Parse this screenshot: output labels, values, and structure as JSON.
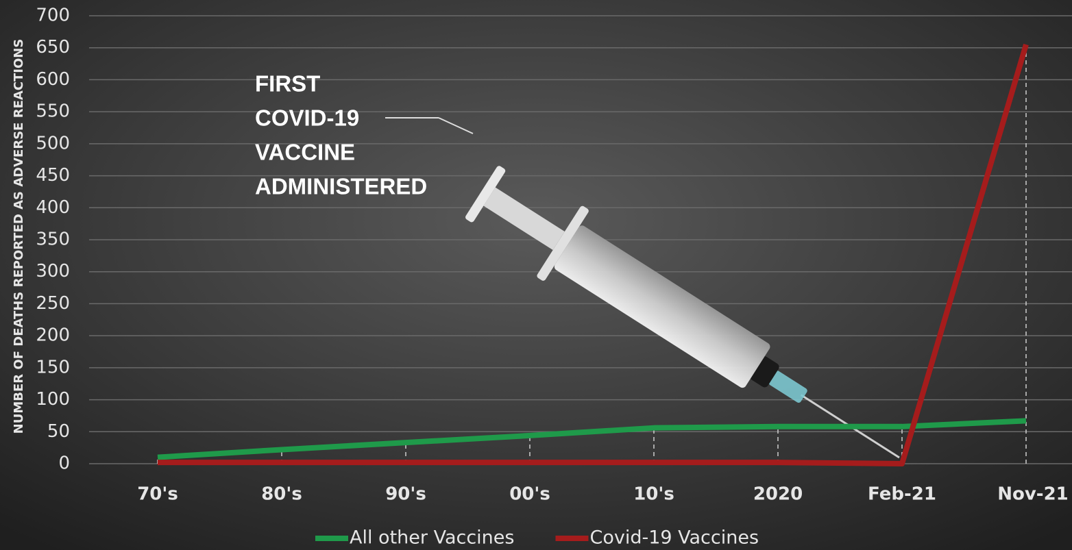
{
  "chart_data": {
    "type": "line",
    "y_label": "NUMBER OF DEATHS REPORTED AS ADVERSE REACTIONS",
    "annotation": [
      "FIRST",
      "COVID-19",
      "VACCINE",
      "ADMINISTERED"
    ],
    "categories": [
      "70's",
      "80's",
      "90's",
      "00's",
      "10's",
      "2020",
      "Feb-21",
      "Nov-21"
    ],
    "series": [
      {
        "name": "All other Vaccines",
        "color": "#1f9a4a",
        "values": [
          10,
          22,
          33,
          44,
          56,
          58,
          58,
          67
        ]
      },
      {
        "name": "Covid-19 Vaccines",
        "color": "#a51c1c",
        "values": [
          2,
          2,
          2,
          2,
          2,
          2,
          0,
          655
        ]
      }
    ],
    "ylim": [
      0,
      700
    ],
    "yticks": [
      0,
      50,
      100,
      150,
      200,
      250,
      300,
      350,
      400,
      450,
      500,
      550,
      600,
      650,
      700
    ],
    "grid": true
  }
}
